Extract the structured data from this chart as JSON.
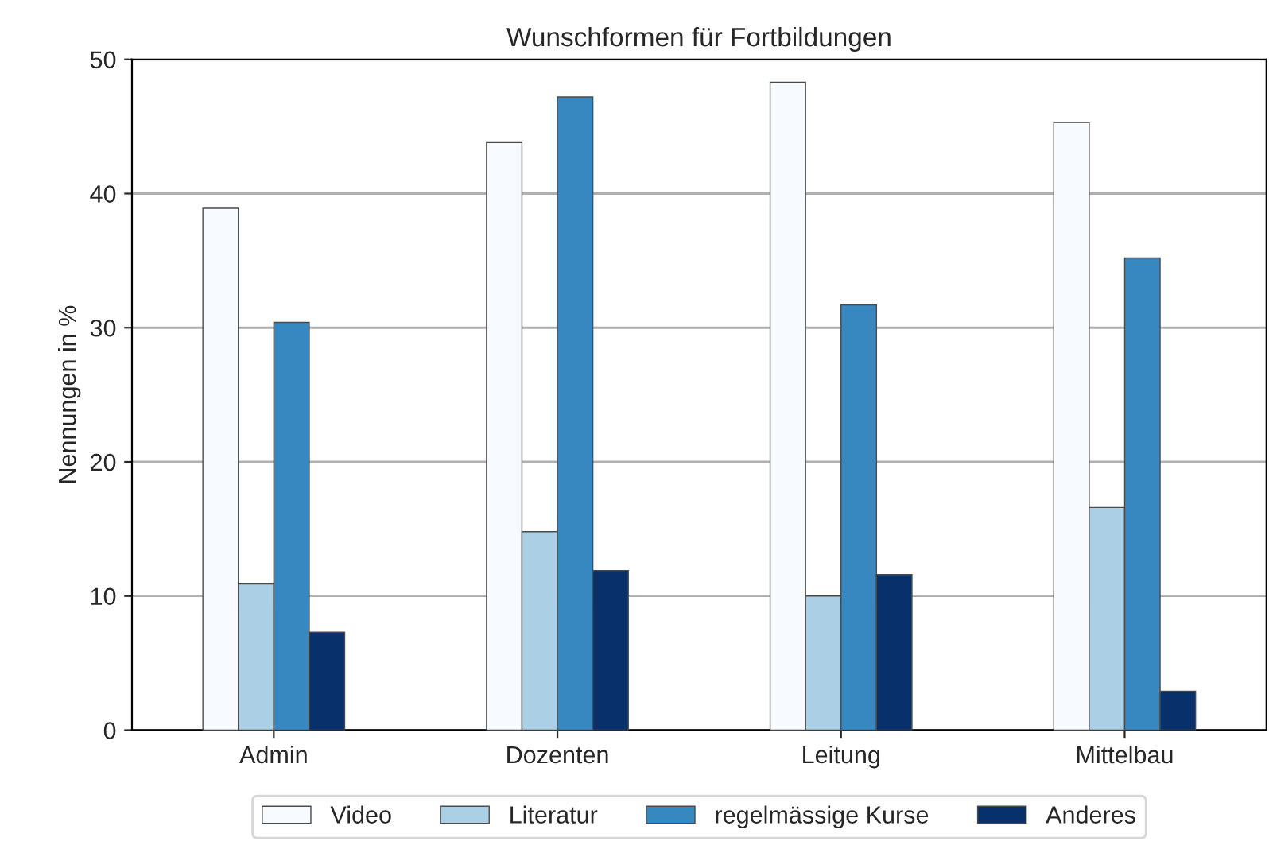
{
  "chart_data": {
    "type": "bar",
    "title": "Wunschformen für Fortbildungen",
    "ylabel": "Nennungen in %",
    "categories": [
      "Admin",
      "Dozenten",
      "Leitung",
      "Mittelbau"
    ],
    "series": [
      {
        "name": "Video",
        "color": "#f7fbff",
        "values": [
          38.9,
          43.8,
          48.3,
          45.3
        ]
      },
      {
        "name": "Literatur",
        "color": "#abd0e6",
        "values": [
          10.9,
          14.8,
          10.0,
          16.6
        ]
      },
      {
        "name": "regelmässige Kurse",
        "color": "#3787c0",
        "values": [
          30.4,
          47.2,
          31.7,
          35.2
        ]
      },
      {
        "name": "Anderes",
        "color": "#08306b",
        "values": [
          7.3,
          11.9,
          11.6,
          2.9
        ]
      }
    ],
    "ylim": [
      0,
      50
    ],
    "yticks": [
      0,
      10,
      20,
      30,
      40,
      50
    ],
    "grid": "y",
    "legend": "bottom"
  }
}
